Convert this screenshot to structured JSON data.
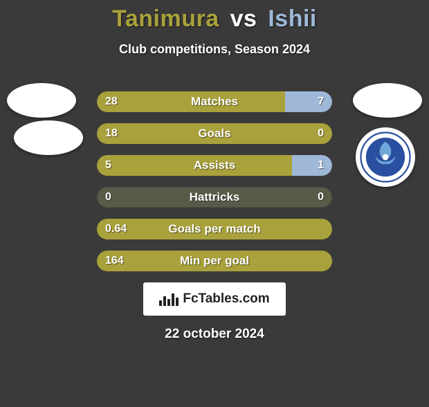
{
  "title": {
    "player1": "Tanimura",
    "vs": "vs",
    "player2": "Ishii",
    "player1_color": "#a9a13b",
    "player2_color": "#9fb8d8"
  },
  "subtitle": "Club competitions, Season 2024",
  "colors": {
    "left_bar": "#a9a13b",
    "right_bar": "#9fb8d8",
    "neutral_bar": "#5a5a48",
    "background": "#3a3a3a",
    "text": "#ffffff"
  },
  "stats": [
    {
      "label": "Matches",
      "left_value": "28",
      "right_value": "7",
      "left_pct": 80,
      "right_pct": 20
    },
    {
      "label": "Goals",
      "left_value": "18",
      "right_value": "0",
      "left_pct": 100,
      "right_pct": 0
    },
    {
      "label": "Assists",
      "left_value": "5",
      "right_value": "1",
      "left_pct": 83,
      "right_pct": 17
    },
    {
      "label": "Hattricks",
      "left_value": "0",
      "right_value": "0",
      "left_pct": 0,
      "right_pct": 0,
      "neutral": true
    },
    {
      "label": "Goals per match",
      "left_value": "0.64",
      "right_value": "",
      "left_pct": 100,
      "right_pct": 0
    },
    {
      "label": "Min per goal",
      "left_value": "164",
      "right_value": "",
      "left_pct": 100,
      "right_pct": 0
    }
  ],
  "watermark": "FcTables.com",
  "date": "22 october 2024",
  "club_badge_right": {
    "name": "FC Mito Holly Hock",
    "primary": "#2a4fa0",
    "secondary": "#ffffff"
  }
}
